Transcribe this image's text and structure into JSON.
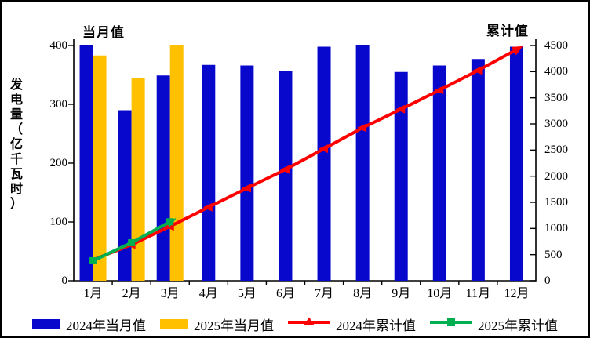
{
  "labels": {
    "monthly_corner": "当月值",
    "cumulative_corner": "累计值",
    "y_axis_title": "发电量（亿千瓦时）"
  },
  "chart_data": {
    "type": "bar+line combo (monthly bars on left axis, cumulative lines on right axis)",
    "categories": [
      "1月",
      "2月",
      "3月",
      "4月",
      "5月",
      "6月",
      "7月",
      "8月",
      "9月",
      "10月",
      "11月",
      "12月"
    ],
    "left_axis": {
      "corner_title": "当月值",
      "axis_title": "发电量（亿千瓦时）",
      "ticks": [
        0,
        100,
        200,
        300,
        400
      ],
      "range": [
        0,
        400
      ]
    },
    "right_axis": {
      "corner_title": "累计值",
      "ticks": [
        0,
        500,
        1000,
        1500,
        2000,
        2500,
        3000,
        3500,
        4000,
        4500
      ],
      "range": [
        0,
        4500
      ]
    },
    "grid": false,
    "legend_position": "bottom",
    "series": [
      {
        "name": "2024年当月值",
        "type": "bar",
        "axis": "left",
        "color": "#0808CC",
        "marker": "rect",
        "values": [
          400,
          290,
          349,
          367,
          366,
          356,
          398,
          400,
          355,
          366,
          377,
          398
        ]
      },
      {
        "name": "2025年当月值",
        "type": "bar",
        "axis": "left",
        "color": "#FFC000",
        "marker": "rect",
        "values": [
          383,
          345,
          400,
          null,
          null,
          null,
          null,
          null,
          null,
          null,
          null,
          null
        ]
      },
      {
        "name": "2024年累计值",
        "type": "line",
        "axis": "right",
        "color": "#FF0000",
        "marker": "triangle",
        "values": [
          400,
          690,
          1039,
          1406,
          1772,
          2128,
          2526,
          2926,
          3281,
          3647,
          4024,
          4422
        ]
      },
      {
        "name": "2025年累计值",
        "type": "line",
        "axis": "right",
        "color": "#00B050",
        "marker": "square",
        "values": [
          383,
          728,
          1128,
          null,
          null,
          null,
          null,
          null,
          null,
          null,
          null,
          null
        ]
      }
    ]
  }
}
